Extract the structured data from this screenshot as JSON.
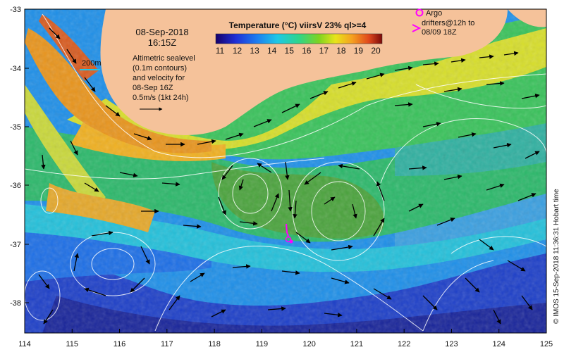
{
  "map": {
    "date": "08-Sep-2018",
    "time": "16:15Z",
    "scale_label": "200m",
    "info_lines": [
      "Altimetric sealevel",
      "(0.1m contours)",
      "and velocity for",
      "08-Sep 16Z",
      "0.5m/s (1kt 24h)"
    ],
    "colorbar": {
      "title": "Temperature (°C) viirsV 23% ql>=4",
      "ticks": [
        "11",
        "12",
        "13",
        "14",
        "15",
        "16",
        "17",
        "18",
        "19",
        "20"
      ],
      "range": [
        11,
        20
      ]
    },
    "legend": {
      "argo_label": "Argo",
      "drifter_lines": [
        "drifters@12h to",
        "08/09 18Z"
      ]
    },
    "credit": "© IMOS 15-Sep-2018 11:36:31 Hobart time",
    "lon_ticks": [
      "114",
      "115",
      "116",
      "117",
      "118",
      "119",
      "120",
      "121",
      "122",
      "123",
      "124",
      "125"
    ],
    "lat_ticks": [
      "-33",
      "-34",
      "-35",
      "-36",
      "-37",
      "-38"
    ],
    "colors": {
      "land": "#f5c29a",
      "contour": "#ffffff",
      "arrow": "#000000",
      "argo": "#ff00ff"
    }
  }
}
